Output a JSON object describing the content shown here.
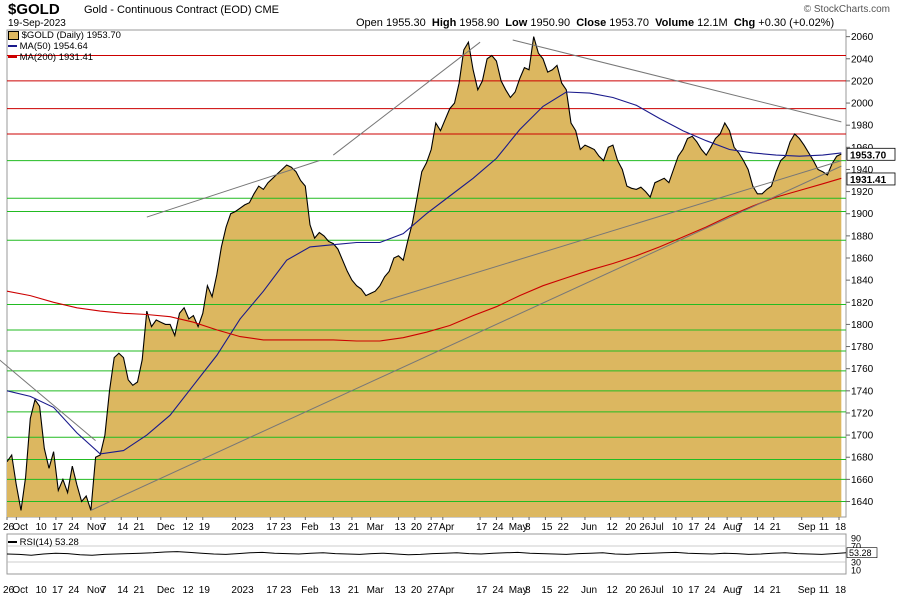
{
  "header": {
    "symbol": "$GOLD",
    "description": "Gold - Continuous Contract (EOD)  CME",
    "date": "19-Sep-2023",
    "brand": "© StockCharts.com",
    "open_label": "Open",
    "open": "1955.30",
    "high_label": "High",
    "high": "1958.90",
    "low_label": "Low",
    "low": "1950.90",
    "close_label": "Close",
    "close": "1953.70",
    "volume_label": "Volume",
    "volume": "12.1M",
    "chg_label": "Chg",
    "chg": "+0.30 (+0.02%)"
  },
  "legend": {
    "price": "$GOLD (Daily) 1953.70",
    "ma50": "MA(50) 1954.64",
    "ma200": "MA(200) 1931.41"
  },
  "rsi_legend": "RSI(14) 53.28",
  "colors": {
    "area_fill": "#dcb760",
    "price_line": "#000000",
    "ma50": "#1a1a8c",
    "ma200": "#cc0000",
    "hline_red": "#cc0000",
    "hline_green": "#22bb22",
    "trendline": "#777777"
  },
  "chart_data": {
    "type": "area",
    "title": "$GOLD (Daily)",
    "ylim": [
      1626,
      2066
    ],
    "yticks": [
      1640,
      1660,
      1680,
      1700,
      1720,
      1740,
      1760,
      1780,
      1800,
      1820,
      1840,
      1860,
      1880,
      1900,
      1920,
      1940,
      1960,
      1980,
      2000,
      2020,
      2040,
      2060
    ],
    "xticks": [
      {
        "label": "26",
        "day": 0
      },
      {
        "label": "Oct",
        "day": 4
      },
      {
        "label": "10",
        "day": 14
      },
      {
        "label": "17",
        "day": 21
      },
      {
        "label": "24",
        "day": 28
      },
      {
        "label": "Nov",
        "day": 36
      },
      {
        "label": "7",
        "day": 42
      },
      {
        "label": "14",
        "day": 49
      },
      {
        "label": "21",
        "day": 56
      },
      {
        "label": "Dec",
        "day": 66
      },
      {
        "label": "12",
        "day": 77
      },
      {
        "label": "19",
        "day": 84
      },
      {
        "label": "2023",
        "day": 98
      },
      {
        "label": "17",
        "day": 113
      },
      {
        "label": "23",
        "day": 119
      },
      {
        "label": "Feb",
        "day": 128
      },
      {
        "label": "13",
        "day": 140
      },
      {
        "label": "21",
        "day": 148
      },
      {
        "label": "Mar",
        "day": 156
      },
      {
        "label": "13",
        "day": 168
      },
      {
        "label": "20",
        "day": 175
      },
      {
        "label": "27",
        "day": 182
      },
      {
        "label": "Apr",
        "day": 187
      },
      {
        "label": "17",
        "day": 203
      },
      {
        "label": "24",
        "day": 210
      },
      {
        "label": "May",
        "day": 217
      },
      {
        "label": "8",
        "day": 224
      },
      {
        "label": "15",
        "day": 231
      },
      {
        "label": "22",
        "day": 238
      },
      {
        "label": "Jun",
        "day": 248
      },
      {
        "label": "12",
        "day": 259
      },
      {
        "label": "20",
        "day": 267
      },
      {
        "label": "26",
        "day": 273
      },
      {
        "label": "Jul",
        "day": 278
      },
      {
        "label": "10",
        "day": 287
      },
      {
        "label": "17",
        "day": 294
      },
      {
        "label": "24",
        "day": 301
      },
      {
        "label": "Aug",
        "day": 309
      },
      {
        "label": "7",
        "day": 315
      },
      {
        "label": "14",
        "day": 322
      },
      {
        "label": "21",
        "day": 329
      },
      {
        "label": "Sep",
        "day": 341
      },
      {
        "label": "11",
        "day": 350
      },
      {
        "label": "18",
        "day": 357
      }
    ],
    "price_badge": "1953.70",
    "ma200_badge": "1931.41",
    "series": [
      {
        "name": "$GOLD (Daily)",
        "x": [
          0,
          2,
          4,
          6,
          8,
          10,
          12,
          14,
          16,
          18,
          20,
          22,
          24,
          26,
          28,
          30,
          32,
          34,
          36,
          38,
          40,
          42,
          44,
          46,
          48,
          50,
          52,
          54,
          56,
          58,
          60,
          62,
          64,
          66,
          68,
          70,
          72,
          74,
          76,
          78,
          80,
          82,
          84,
          86,
          88,
          90,
          92,
          94,
          96,
          98,
          100,
          102,
          104,
          106,
          108,
          110,
          112,
          114,
          116,
          118,
          120,
          122,
          124,
          126,
          128,
          130,
          132,
          134,
          136,
          138,
          140,
          142,
          144,
          146,
          148,
          150,
          152,
          154,
          156,
          158,
          160,
          162,
          164,
          166,
          168,
          170,
          172,
          174,
          176,
          178,
          180,
          182,
          184,
          186,
          188,
          190,
          192,
          194,
          196,
          198,
          200,
          202,
          204,
          206,
          208,
          210,
          212,
          214,
          216,
          218,
          220,
          222,
          224,
          226,
          228,
          230,
          232,
          234,
          236,
          238,
          240,
          242,
          244,
          246,
          248,
          250,
          252,
          254,
          256,
          258,
          260,
          262,
          264,
          266,
          268,
          270,
          272,
          274,
          276,
          278,
          280,
          282,
          284,
          286,
          288,
          290,
          292,
          294,
          296,
          298,
          300,
          302,
          304,
          306,
          308,
          310,
          312,
          314,
          316,
          318,
          320,
          322,
          324,
          326,
          328,
          330,
          332,
          334,
          336,
          338,
          340,
          342,
          344,
          346,
          348,
          350,
          352,
          354,
          356,
          358
        ],
        "values": [
          1676,
          1682,
          1655,
          1632,
          1662,
          1715,
          1732,
          1726,
          1688,
          1670,
          1685,
          1650,
          1660,
          1648,
          1672,
          1655,
          1640,
          1645,
          1632,
          1680,
          1682,
          1700,
          1740,
          1770,
          1774,
          1770,
          1750,
          1745,
          1748,
          1768,
          1812,
          1798,
          1804,
          1802,
          1800,
          1800,
          1790,
          1810,
          1815,
          1805,
          1808,
          1798,
          1810,
          1835,
          1825,
          1845,
          1870,
          1888,
          1900,
          1902,
          1905,
          1908,
          1910,
          1918,
          1925,
          1922,
          1928,
          1932,
          1936,
          1940,
          1944,
          1942,
          1938,
          1930,
          1925,
          1890,
          1878,
          1883,
          1880,
          1875,
          1873,
          1868,
          1858,
          1848,
          1840,
          1835,
          1832,
          1826,
          1828,
          1830,
          1835,
          1843,
          1848,
          1860,
          1862,
          1858,
          1876,
          1892,
          1915,
          1938,
          1946,
          1958,
          1982,
          1975,
          1985,
          1995,
          2000,
          2018,
          2048,
          2055,
          2030,
          2012,
          2020,
          2040,
          2043,
          2038,
          2020,
          2012,
          2005,
          2010,
          2022,
          2032,
          2030,
          2060,
          2045,
          2040,
          2028,
          2030,
          2034,
          2018,
          2012,
          1982,
          1975,
          1958,
          1962,
          1960,
          1958,
          1952,
          1948,
          1960,
          1962,
          1948,
          1940,
          1925,
          1923,
          1922,
          1924,
          1920,
          1915,
          1928,
          1930,
          1932,
          1928,
          1940,
          1952,
          1958,
          1968,
          1970,
          1965,
          1958,
          1953,
          1960,
          1968,
          1972,
          1982,
          1975,
          1960,
          1955,
          1948,
          1940,
          1925,
          1918,
          1918,
          1922,
          1925,
          1938,
          1948,
          1952,
          1965,
          1972,
          1968,
          1962,
          1955,
          1948,
          1940,
          1938,
          1935,
          1945,
          1952,
          1954
        ]
      },
      {
        "name": "MA(50)",
        "x": [
          0,
          10,
          20,
          30,
          40,
          50,
          60,
          70,
          80,
          90,
          100,
          110,
          120,
          130,
          140,
          150,
          160,
          170,
          180,
          190,
          200,
          210,
          220,
          230,
          240,
          250,
          260,
          270,
          280,
          290,
          300,
          310,
          320,
          330,
          340,
          350,
          358
        ],
        "values": [
          1740,
          1735,
          1725,
          1702,
          1683,
          1686,
          1700,
          1718,
          1745,
          1772,
          1805,
          1830,
          1858,
          1870,
          1872,
          1874,
          1874,
          1882,
          1900,
          1916,
          1932,
          1950,
          1976,
          1997,
          2010,
          2009,
          2005,
          1998,
          1986,
          1975,
          1966,
          1958,
          1955,
          1953,
          1952,
          1953,
          1955
        ]
      },
      {
        "name": "MA(200)",
        "x": [
          0,
          10,
          20,
          30,
          40,
          50,
          60,
          70,
          80,
          90,
          100,
          110,
          120,
          130,
          140,
          150,
          160,
          170,
          180,
          190,
          200,
          210,
          220,
          230,
          240,
          250,
          260,
          270,
          280,
          290,
          300,
          310,
          320,
          330,
          340,
          350,
          358
        ],
        "values": [
          1830,
          1826,
          1820,
          1815,
          1812,
          1810,
          1809,
          1807,
          1802,
          1795,
          1789,
          1786,
          1786,
          1786,
          1786,
          1785,
          1785,
          1788,
          1793,
          1799,
          1808,
          1816,
          1826,
          1835,
          1842,
          1849,
          1855,
          1862,
          1870,
          1879,
          1888,
          1898,
          1907,
          1915,
          1921,
          1927,
          1932
        ]
      }
    ],
    "rsi": {
      "name": "RSI(14)",
      "value": 53.28,
      "ylim": [
        0,
        100
      ],
      "ticks": [
        90,
        70,
        50,
        30,
        10
      ],
      "values": [
        50,
        49,
        47,
        50,
        52,
        51,
        48,
        47,
        49,
        50,
        51,
        52,
        53,
        55,
        56,
        54,
        52,
        50,
        49,
        51,
        53,
        54,
        52,
        51,
        50,
        52,
        53,
        51,
        50,
        49,
        51,
        52,
        50,
        48,
        49,
        51,
        52,
        53,
        51,
        50,
        52,
        53,
        54,
        52,
        51,
        50,
        49,
        51,
        52,
        53,
        50,
        49,
        51,
        52,
        53,
        54,
        52,
        51,
        50,
        52,
        51,
        49,
        50,
        52,
        53,
        51,
        50,
        49,
        51,
        53
      ]
    },
    "horizontal_levels": {
      "red": [
        2043,
        2020,
        1995,
        1972
      ],
      "green": [
        1948,
        1914,
        1902,
        1876,
        1818,
        1795,
        1776,
        1758,
        1740,
        1721,
        1698,
        1678,
        1660,
        1640
      ]
    },
    "trendlines": [
      {
        "from": [
          -10,
          1780
        ],
        "to": [
          38,
          1695
        ]
      },
      {
        "from": [
          60,
          1897
        ],
        "to": [
          134,
          1948
        ]
      },
      {
        "from": [
          140,
          1953
        ],
        "to": [
          203,
          2055
        ]
      },
      {
        "from": [
          217,
          2057
        ],
        "to": [
          358,
          1983
        ]
      },
      {
        "from": [
          160,
          1820
        ],
        "to": [
          358,
          1948
        ]
      },
      {
        "from": [
          36,
          1632
        ],
        "to": [
          358,
          1943
        ]
      }
    ]
  }
}
